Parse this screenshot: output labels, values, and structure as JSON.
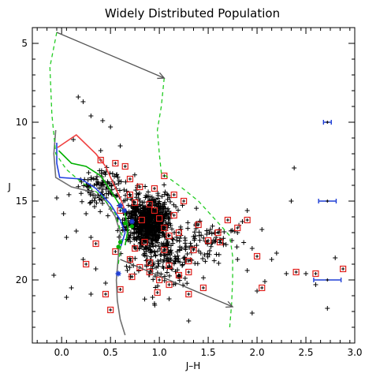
{
  "chart_data": {
    "type": "scatter",
    "title": "Widely Distributed Population",
    "xlabel": "J–H",
    "ylabel": "J",
    "xlim": [
      -0.3,
      3.0
    ],
    "ylim": [
      24,
      4
    ],
    "y_inverted": true,
    "x_ticks": [
      "0.0",
      "0.5",
      "1.0",
      "1.5",
      "2.0",
      "2.5",
      "3.0"
    ],
    "y_ticks": [
      "5",
      "10",
      "15",
      "20"
    ],
    "grid": false,
    "legend": "none",
    "colors": {
      "black_points": "#000000",
      "red_squares": "#e0201c",
      "blue_markers": "#1f3fd6",
      "isochrone_gray": "#707070",
      "isochrone_blue": "#2040e0",
      "isochrone_green": "#00b000",
      "isochrone_red": "#f04040",
      "reddening_vector": "#555555",
      "green_dashed": "#22cc22"
    },
    "lines": [
      {
        "id": "gray-isochrone",
        "style": "solid",
        "points": [
          [
            -0.06,
            10.5
          ],
          [
            -0.08,
            12.0
          ],
          [
            -0.06,
            13.5
          ],
          [
            0.1,
            14.1
          ],
          [
            0.3,
            14.4
          ],
          [
            0.45,
            15.0
          ],
          [
            0.55,
            16.0
          ],
          [
            0.6,
            17.0
          ],
          [
            0.58,
            18.5
          ],
          [
            0.56,
            20.0
          ],
          [
            0.57,
            21.3
          ],
          [
            0.6,
            22.5
          ],
          [
            0.65,
            23.5
          ]
        ]
      },
      {
        "id": "blue-isochrone",
        "style": "solid",
        "points": [
          [
            -0.05,
            11.3
          ],
          [
            -0.05,
            12.6
          ],
          [
            -0.02,
            13.5
          ],
          [
            0.2,
            13.6
          ],
          [
            0.35,
            14.2
          ],
          [
            0.5,
            15.2
          ],
          [
            0.6,
            16.2
          ],
          [
            0.65,
            17.0
          ],
          [
            0.6,
            18.0
          ]
        ]
      },
      {
        "id": "green-isochrone",
        "style": "solid",
        "points": [
          [
            -0.03,
            11.8
          ],
          [
            0.1,
            12.6
          ],
          [
            0.25,
            12.8
          ],
          [
            0.4,
            13.4
          ],
          [
            0.55,
            14.8
          ],
          [
            0.65,
            15.8
          ],
          [
            0.68,
            16.8
          ],
          [
            0.65,
            17.8
          ]
        ]
      },
      {
        "id": "red-isochrone",
        "style": "solid",
        "points": [
          [
            -0.04,
            11.6
          ],
          [
            0.15,
            10.8
          ],
          [
            0.35,
            12.0
          ],
          [
            0.45,
            12.8
          ],
          [
            0.5,
            13.5
          ],
          [
            0.6,
            14.8
          ],
          [
            0.65,
            15.6
          ]
        ]
      },
      {
        "id": "green-dashed-left",
        "style": "dashed",
        "points": [
          [
            -0.05,
            4.3
          ],
          [
            -0.12,
            6.5
          ],
          [
            -0.1,
            9.5
          ],
          [
            -0.06,
            12.0
          ],
          [
            0.05,
            13.0
          ],
          [
            0.2,
            13.8
          ],
          [
            0.4,
            14.6
          ],
          [
            0.55,
            15.8
          ],
          [
            0.62,
            17.2
          ],
          [
            0.58,
            19.0
          ]
        ]
      },
      {
        "id": "green-dashed-right",
        "style": "dashed",
        "points": [
          [
            1.05,
            7.2
          ],
          [
            1.02,
            9.0
          ],
          [
            0.98,
            10.5
          ],
          [
            1.0,
            12.0
          ],
          [
            1.02,
            13.2
          ],
          [
            1.2,
            14.0
          ],
          [
            1.4,
            15.0
          ],
          [
            1.62,
            16.5
          ],
          [
            1.72,
            17.2
          ],
          [
            1.75,
            18.5
          ],
          [
            1.75,
            20.0
          ],
          [
            1.74,
            21.5
          ],
          [
            1.72,
            23.0
          ]
        ]
      }
    ],
    "arrows": [
      {
        "id": "reddening-vector-top",
        "from": [
          -0.05,
          4.3
        ],
        "to": [
          1.05,
          7.2
        ]
      },
      {
        "id": "reddening-vector-bottom",
        "from": [
          0.6,
          18.7
        ],
        "to": [
          1.75,
          21.7
        ]
      }
    ],
    "error_bars": [
      {
        "id": "errbar-10",
        "x": 2.72,
        "y": 10.0,
        "xerr": 0.04
      },
      {
        "id": "errbar-15",
        "x": 2.72,
        "y": 15.0,
        "xerr": 0.09
      },
      {
        "id": "errbar-20",
        "x": 2.72,
        "y": 20.0,
        "xerr": 0.14
      }
    ],
    "blue_stars": [
      [
        0.6,
        15.3
      ],
      [
        0.58,
        19.6
      ],
      [
        0.64,
        15.6
      ],
      [
        0.72,
        16.3
      ]
    ],
    "green_points": [
      [
        0.65,
        16.4
      ],
      [
        0.72,
        16.6
      ],
      [
        0.58,
        17.9
      ],
      [
        0.6,
        17.6
      ]
    ],
    "black_points_clusters": [
      {
        "cx": 0.88,
        "cy": 16.3,
        "sx": 0.2,
        "sy": 1.3,
        "n": 750
      },
      {
        "cx": 1.05,
        "cy": 18.5,
        "sx": 0.3,
        "sy": 1.8,
        "n": 180
      },
      {
        "cx": 0.45,
        "cy": 14.2,
        "sx": 0.25,
        "sy": 1.2,
        "n": 120
      },
      {
        "cx": 1.45,
        "cy": 17.5,
        "sx": 0.35,
        "sy": 1.3,
        "n": 90
      }
    ],
    "black_points": [
      [
        0.17,
        8.4
      ],
      [
        0.22,
        8.7
      ],
      [
        0.3,
        9.6
      ],
      [
        0.42,
        9.9
      ],
      [
        0.5,
        10.3
      ],
      [
        0.12,
        11.1
      ],
      [
        0.6,
        11.5
      ],
      [
        0.4,
        11.8
      ],
      [
        2.35,
        15.0
      ],
      [
        2.38,
        12.9
      ],
      [
        2.2,
        18.3
      ],
      [
        2.3,
        19.6
      ],
      [
        2.5,
        19.6
      ],
      [
        2.8,
        18.6
      ],
      [
        2.72,
        21.8
      ],
      [
        2.6,
        20.3
      ],
      [
        -0.08,
        19.7
      ],
      [
        0.05,
        21.1
      ],
      [
        0.1,
        20.5
      ],
      [
        0.3,
        20.9
      ],
      [
        0.45,
        20.2
      ],
      [
        0.22,
        18.7
      ],
      [
        0.35,
        19.3
      ],
      [
        1.95,
        18.0
      ],
      [
        2.05,
        16.8
      ],
      [
        2.15,
        18.7
      ],
      [
        1.9,
        19.4
      ],
      [
        1.8,
        18.7
      ],
      [
        2.0,
        20.7
      ],
      [
        2.08,
        20.1
      ],
      [
        1.85,
        16.3
      ],
      [
        1.9,
        15.6
      ],
      [
        1.8,
        17.0
      ],
      [
        1.95,
        22.1
      ],
      [
        1.3,
        22.6
      ],
      [
        0.95,
        21.5
      ],
      [
        1.1,
        21.2
      ],
      [
        0.05,
        17.3
      ],
      [
        0.15,
        16.9
      ],
      [
        -0.05,
        14.8
      ],
      [
        0.02,
        15.8
      ],
      [
        0.25,
        15.8
      ],
      [
        0.3,
        17.3
      ]
    ],
    "red_squares": [
      [
        0.4,
        12.4
      ],
      [
        0.55,
        12.6
      ],
      [
        0.65,
        12.8
      ],
      [
        0.7,
        13.6
      ],
      [
        0.8,
        14.1
      ],
      [
        0.9,
        15.2
      ],
      [
        0.95,
        15.6
      ],
      [
        1.0,
        16.1
      ],
      [
        1.05,
        16.7
      ],
      [
        1.1,
        17.2
      ],
      [
        0.85,
        17.6
      ],
      [
        0.75,
        18.0
      ],
      [
        0.7,
        18.7
      ],
      [
        0.8,
        19.2
      ],
      [
        0.9,
        19.5
      ],
      [
        1.0,
        20.0
      ],
      [
        1.1,
        20.3
      ],
      [
        1.2,
        19.7
      ],
      [
        1.3,
        18.8
      ],
      [
        1.35,
        18.1
      ],
      [
        1.5,
        17.5
      ],
      [
        1.6,
        17.0
      ],
      [
        1.7,
        16.2
      ],
      [
        1.8,
        16.7
      ],
      [
        1.9,
        16.2
      ],
      [
        1.25,
        15.0
      ],
      [
        1.15,
        14.6
      ],
      [
        0.95,
        14.2
      ],
      [
        1.05,
        13.4
      ],
      [
        0.35,
        17.7
      ],
      [
        0.25,
        19.0
      ],
      [
        0.55,
        18.2
      ],
      [
        0.6,
        20.6
      ],
      [
        0.45,
        20.9
      ],
      [
        0.5,
        21.9
      ],
      [
        1.45,
        20.5
      ],
      [
        1.3,
        20.9
      ],
      [
        2.05,
        20.5
      ],
      [
        2.4,
        19.5
      ],
      [
        2.6,
        19.6
      ],
      [
        2.88,
        19.3
      ],
      [
        2.0,
        18.5
      ],
      [
        1.62,
        17.6
      ],
      [
        1.05,
        18.1
      ],
      [
        0.9,
        18.9
      ],
      [
        1.15,
        15.9
      ],
      [
        0.82,
        16.2
      ],
      [
        0.75,
        15.1
      ],
      [
        0.6,
        15.6
      ],
      [
        0.7,
        14.6
      ],
      [
        1.2,
        17.0
      ],
      [
        1.4,
        16.5
      ],
      [
        1.3,
        19.5
      ],
      [
        0.98,
        20.8
      ],
      [
        0.72,
        19.8
      ],
      [
        1.1,
        19.1
      ]
    ]
  }
}
